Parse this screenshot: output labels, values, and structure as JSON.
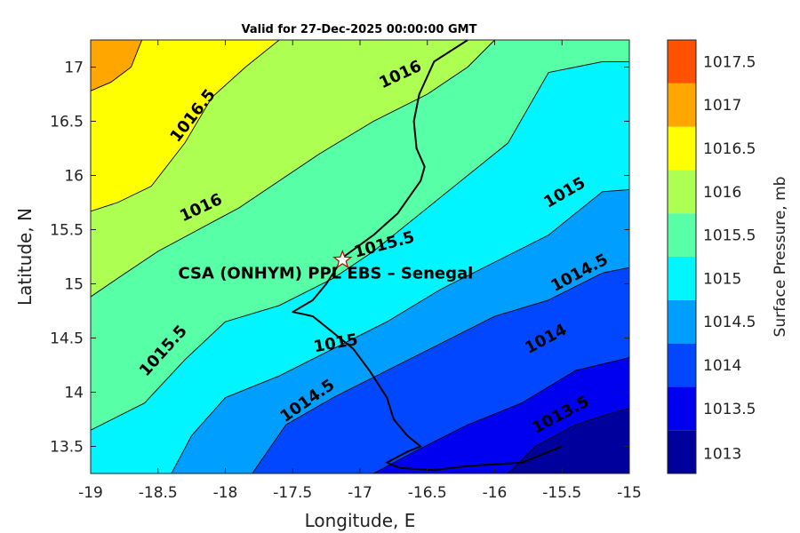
{
  "chart_data": {
    "type": "contour",
    "title": "Valid for 27-Dec-2025 00:00:00 GMT",
    "xlabel": "Longitude, E",
    "ylabel": "Latitude, N",
    "xlim": [
      -19,
      -15
    ],
    "ylim": [
      13.25,
      17.25
    ],
    "x_ticks": [
      -19,
      -18.5,
      -18,
      -17.5,
      -17,
      -16.5,
      -16,
      -15.5,
      -15
    ],
    "x_tick_labels": [
      "-19",
      "-18.5",
      "-18",
      "-17.5",
      "-17",
      "-16.5",
      "-16",
      "-15.5",
      "-15"
    ],
    "y_ticks": [
      13.5,
      14,
      14.5,
      15,
      15.5,
      16,
      16.5,
      17
    ],
    "y_tick_labels": [
      "13.5",
      "14",
      "14.5",
      "15",
      "15.5",
      "16",
      "16.5",
      "17"
    ],
    "colorbar": {
      "label": "Surface Pressure, mb",
      "levels": [
        1013,
        1013.5,
        1014,
        1014.5,
        1015,
        1015.5,
        1016,
        1016.5,
        1017,
        1017.5
      ],
      "tick_labels": [
        "1013",
        "1013.5",
        "1014",
        "1014.5",
        "1015",
        "1015.5",
        "1016",
        "1016.5",
        "1017",
        "1017.5"
      ],
      "colors": [
        "#00009c",
        "#0000f0",
        "#0047ff",
        "#009fff",
        "#00f5ff",
        "#57ffa6",
        "#adff52",
        "#ffff00",
        "#ffa600",
        "#ff5200"
      ]
    },
    "contour_lines": [
      {
        "level": 1017,
        "label": "",
        "points": [
          [
            -19,
            16.78
          ],
          [
            -18.85,
            16.86
          ],
          [
            -18.7,
            17.0
          ],
          [
            -18.62,
            17.25
          ]
        ]
      },
      {
        "level": 1016.5,
        "label": "1016.5",
        "points": [
          [
            -19,
            15.67
          ],
          [
            -18.8,
            15.75
          ],
          [
            -18.55,
            15.9
          ],
          [
            -18.3,
            16.3
          ],
          [
            -18.1,
            16.72
          ],
          [
            -17.85,
            17.0
          ],
          [
            -17.6,
            17.25
          ]
        ]
      },
      {
        "level": 1016,
        "label": "1016",
        "points": [
          [
            -19,
            14.88
          ],
          [
            -18.8,
            15.05
          ],
          [
            -18.5,
            15.3
          ],
          [
            -18.2,
            15.5
          ],
          [
            -17.9,
            15.7
          ],
          [
            -17.6,
            15.95
          ],
          [
            -17.3,
            16.2
          ],
          [
            -16.9,
            16.5
          ],
          [
            -16.5,
            16.75
          ],
          [
            -16.2,
            17.0
          ],
          [
            -16.0,
            17.25
          ]
        ]
      },
      {
        "level": 1015.5,
        "label": "1015.5",
        "points": [
          [
            -19,
            13.65
          ],
          [
            -18.6,
            13.9
          ],
          [
            -18.3,
            14.3
          ],
          [
            -18.0,
            14.65
          ],
          [
            -17.6,
            14.8
          ],
          [
            -17.2,
            15.05
          ],
          [
            -16.9,
            15.3
          ],
          [
            -16.6,
            15.6
          ],
          [
            -16.3,
            15.9
          ],
          [
            -15.9,
            16.3
          ],
          [
            -15.6,
            16.95
          ],
          [
            -15.2,
            17.05
          ],
          [
            -15,
            17.05
          ]
        ]
      },
      {
        "level": 1015,
        "label": "1015",
        "points": [
          [
            -18.4,
            13.25
          ],
          [
            -18.25,
            13.6
          ],
          [
            -18.0,
            13.95
          ],
          [
            -17.6,
            14.15
          ],
          [
            -17.2,
            14.4
          ],
          [
            -16.8,
            14.65
          ],
          [
            -16.4,
            14.95
          ],
          [
            -16.0,
            15.2
          ],
          [
            -15.6,
            15.45
          ],
          [
            -15.2,
            15.85
          ],
          [
            -15,
            15.87
          ]
        ]
      },
      {
        "level": 1014.5,
        "label": "1014.5",
        "points": [
          [
            -17.8,
            13.25
          ],
          [
            -17.55,
            13.7
          ],
          [
            -17.2,
            13.95
          ],
          [
            -16.8,
            14.2
          ],
          [
            -16.4,
            14.45
          ],
          [
            -16.0,
            14.7
          ],
          [
            -15.6,
            14.85
          ],
          [
            -15.2,
            15.1
          ],
          [
            -15,
            15.15
          ]
        ]
      },
      {
        "level": 1014,
        "label": "1014",
        "points": [
          [
            -16.9,
            13.25
          ],
          [
            -16.6,
            13.45
          ],
          [
            -16.2,
            13.7
          ],
          [
            -15.8,
            13.9
          ],
          [
            -15.4,
            14.2
          ],
          [
            -15,
            14.32
          ]
        ]
      },
      {
        "level": 1013.5,
        "label": "1013.5",
        "points": [
          [
            -15.9,
            13.25
          ],
          [
            -15.7,
            13.5
          ],
          [
            -15.4,
            13.7
          ],
          [
            -15.1,
            13.82
          ],
          [
            -15,
            13.85
          ]
        ]
      }
    ],
    "contour_labels": [
      {
        "text": "1016.5",
        "lon": -18.24,
        "lat": 16.55,
        "angle": -52
      },
      {
        "text": "1016",
        "lon": -16.7,
        "lat": 16.93,
        "angle": -25
      },
      {
        "text": "1016",
        "lon": -18.18,
        "lat": 15.7,
        "angle": -25
      },
      {
        "text": "1015.5",
        "lon": -16.82,
        "lat": 15.36,
        "angle": -15
      },
      {
        "text": "1015.5",
        "lon": -18.46,
        "lat": 14.38,
        "angle": -48
      },
      {
        "text": "1015",
        "lon": -15.48,
        "lat": 15.84,
        "angle": -30
      },
      {
        "text": "1015",
        "lon": -17.18,
        "lat": 14.45,
        "angle": -10
      },
      {
        "text": "1014.5",
        "lon": -15.37,
        "lat": 15.1,
        "angle": -28
      },
      {
        "text": "1014.5",
        "lon": -17.39,
        "lat": 13.92,
        "angle": -35
      },
      {
        "text": "1014",
        "lon": -15.62,
        "lat": 14.49,
        "angle": -28
      },
      {
        "text": "1013.5",
        "lon": -15.51,
        "lat": 13.79,
        "angle": -28
      }
    ],
    "coastline": [
      [
        -16.2,
        17.25
      ],
      [
        -16.45,
        17.05
      ],
      [
        -16.56,
        16.75
      ],
      [
        -16.6,
        16.5
      ],
      [
        -16.58,
        16.25
      ],
      [
        -16.52,
        16.08
      ],
      [
        -16.55,
        15.95
      ],
      [
        -16.72,
        15.65
      ],
      [
        -16.9,
        15.45
      ],
      [
        -17.12,
        15.25
      ],
      [
        -17.25,
        15.0
      ],
      [
        -17.35,
        14.85
      ],
      [
        -17.5,
        14.74
      ],
      [
        -17.42,
        14.72
      ],
      [
        -17.35,
        14.7
      ],
      [
        -17.2,
        14.55
      ],
      [
        -17.05,
        14.4
      ],
      [
        -16.93,
        14.2
      ],
      [
        -16.8,
        13.95
      ],
      [
        -16.75,
        13.75
      ],
      [
        -16.65,
        13.6
      ],
      [
        -16.55,
        13.5
      ],
      [
        -16.65,
        13.45
      ],
      [
        -16.8,
        13.35
      ],
      [
        -16.7,
        13.3
      ],
      [
        -16.45,
        13.28
      ],
      [
        -16.2,
        13.32
      ],
      [
        -15.8,
        13.35
      ],
      [
        -15.5,
        13.5
      ]
    ],
    "station": {
      "lon": -17.13,
      "lat": 15.22,
      "label": "CSA (ONHYM) PPL EBS  – Senegal"
    }
  }
}
